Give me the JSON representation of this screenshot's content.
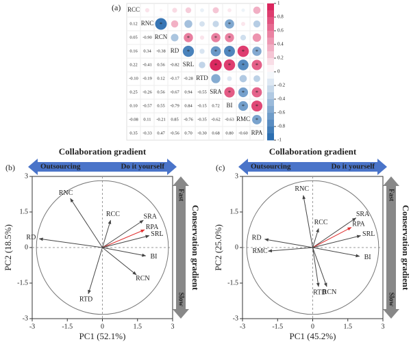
{
  "chart_data": [
    {
      "type": "corrplot",
      "label": "(a)",
      "variables": [
        "RCC",
        "RNC",
        "RCN",
        "RD",
        "SRL",
        "RTD",
        "SRA",
        "BI",
        "RMC",
        "RPA"
      ],
      "values": [
        [
          0.12
        ],
        [
          0.05,
          -0.9
        ],
        [
          0.16,
          0.34,
          -0.38
        ],
        [
          0.22,
          -0.41,
          0.56,
          -0.82
        ],
        [
          -0.1,
          -0.19,
          0.12,
          -0.17,
          -0.28
        ],
        [
          0.25,
          -0.26,
          0.56,
          -0.67,
          0.94,
          -0.55
        ],
        [
          0.1,
          -0.57,
          0.55,
          -0.79,
          0.84,
          -0.15,
          0.72
        ],
        [
          -0.08,
          0.11,
          -0.21,
          0.85,
          -0.76,
          -0.35,
          -0.62,
          -0.63
        ],
        [
          0.35,
          -0.33,
          0.47,
          -0.56,
          0.7,
          -0.3,
          0.68,
          0.8,
          -0.6
        ]
      ],
      "value_labels": [
        [
          "0.12"
        ],
        [
          "0.05",
          "-0.90"
        ],
        [
          "0.16",
          "0.34",
          "-0.38"
        ],
        [
          "0.22",
          "-0.41",
          "0.56",
          "-0.82"
        ],
        [
          "-0.10",
          "-0.19",
          "0.12",
          "-0.17",
          "-0.28"
        ],
        [
          "0.25",
          "-0.26",
          "0.56",
          "-0.67",
          "0.94",
          "-0.55"
        ],
        [
          "0.10",
          "-0.57",
          "0.55",
          "-0.79",
          "0.84",
          "-0.15",
          "0.72"
        ],
        [
          "-0.08",
          "0.11",
          "-0.21",
          "0.85",
          "-0.76",
          "-0.35",
          "-0.62",
          "-0.63"
        ],
        [
          "0.35",
          "-0.33",
          "0.47",
          "-0.56",
          "0.70",
          "-0.30",
          "0.68",
          "0.80",
          "-0.60"
        ]
      ],
      "stars": [
        [
          null
        ],
        [
          null,
          "*"
        ],
        [
          null,
          null,
          null
        ],
        [
          null,
          null,
          "*",
          "*"
        ],
        [
          null,
          null,
          null,
          null,
          null
        ],
        [
          null,
          null,
          "*",
          "*",
          "*",
          null
        ],
        [
          null,
          "*",
          "*",
          "*",
          "*",
          null,
          "*"
        ],
        [
          null,
          null,
          null,
          "*",
          "*",
          null,
          "*",
          "*"
        ],
        [
          null,
          null,
          null,
          "*",
          "*",
          null,
          "*",
          "*",
          "*"
        ]
      ],
      "clim": [
        -1,
        1
      ],
      "colorbar_ticks": [
        1,
        0.8,
        0.6,
        0.4,
        0.2,
        0,
        -0.2,
        -0.4,
        -0.6,
        -0.8,
        -1
      ],
      "positive_color": "#d81b55",
      "negative_color": "#2166ac"
    },
    {
      "type": "biplot",
      "label": "(b)",
      "xlabel": "PC1 (52.1%)",
      "ylabel": "PC2 (18.5%)",
      "xlim": [
        -3,
        3
      ],
      "ylim": [
        -3,
        3
      ],
      "xticks": [
        -3,
        -1.5,
        0,
        1.5,
        3
      ],
      "yticks": [
        -3,
        -1.5,
        0,
        1.5,
        3
      ],
      "labels": [
        "RNC",
        "RCC",
        "SRA",
        "RPA",
        "SRL",
        "RD",
        "BI",
        "RCN",
        "RTD"
      ],
      "x": [
        -1.37,
        0.35,
        1.75,
        1.8,
        2.0,
        -2.7,
        1.85,
        1.45,
        -0.6
      ],
      "values": [
        2.07,
        1.15,
        1.15,
        0.75,
        0.5,
        0.37,
        -0.35,
        -1.15,
        -1.95
      ],
      "colors": [
        "#444",
        "#444",
        "#444",
        "#e03030",
        "#444",
        "#444",
        "#444",
        "#444",
        "#444"
      ],
      "annotations": {
        "collaboration": "Collaboration gradient",
        "left": "Outsourcing",
        "right": "Do it yourself",
        "conservation": "Conservation gradient",
        "top": "Fast",
        "bottom": "Slow"
      }
    },
    {
      "type": "biplot",
      "label": "(c)",
      "xlabel": "PC1 (45.2%)",
      "ylabel": "PC2 (25.0%)",
      "xlim": [
        -3,
        3
      ],
      "ylim": [
        -3,
        3
      ],
      "xticks": [
        -3,
        -1.5,
        0,
        1.5,
        3
      ],
      "yticks": [
        -3,
        -1.5,
        0,
        1.5,
        3
      ],
      "labels": [
        "RNC",
        "SRA",
        "RPA",
        "SRL",
        "RCC",
        "RD",
        "RMC",
        "BI",
        "RTD",
        "RCN"
      ],
      "x": [
        -0.4,
        1.85,
        1.65,
        2.05,
        0.25,
        -2.05,
        -1.9,
        2.0,
        0.25,
        0.6
      ],
      "values": [
        2.2,
        1.25,
        0.85,
        0.5,
        0.8,
        0.35,
        -0.15,
        -0.37,
        -1.65,
        -1.65
      ],
      "colors": [
        "#444",
        "#444",
        "#e03030",
        "#444",
        "#444",
        "#444",
        "#444",
        "#444",
        "#444",
        "#444"
      ],
      "annotations": {
        "collaboration": "Collaboration gradient",
        "left": "Outsourcing",
        "right": "Do it yourself",
        "conservation": "Conservation gradient",
        "top": "Fast",
        "bottom": "Slow"
      }
    }
  ]
}
